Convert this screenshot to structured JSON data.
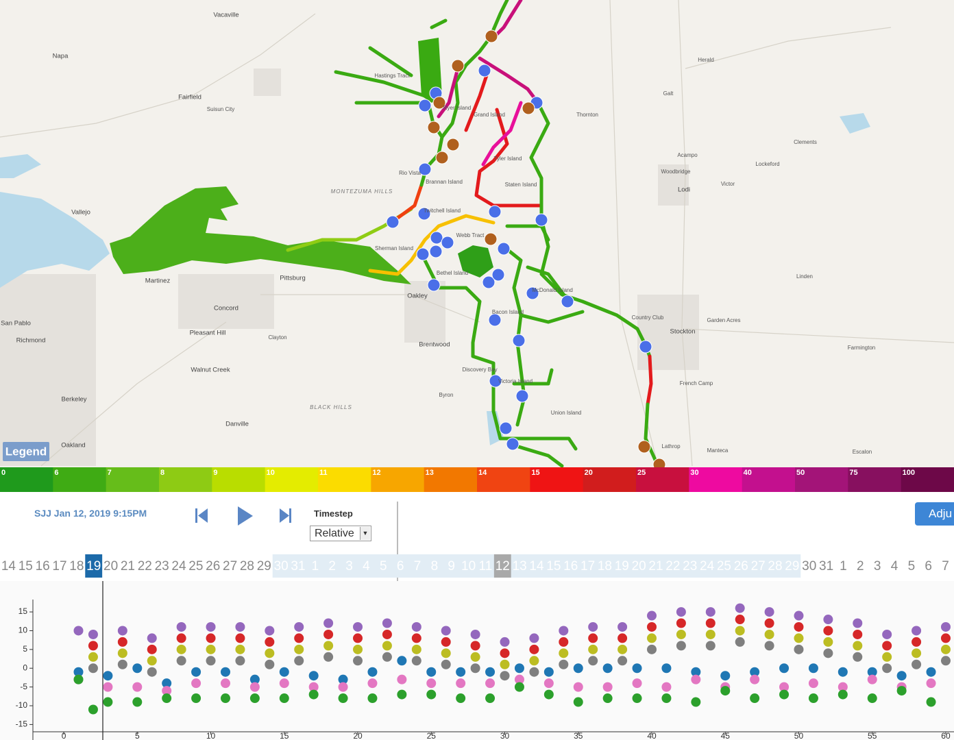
{
  "map": {
    "legend_button": "Legend",
    "places": [
      "Vacaville",
      "Napa",
      "Fairfield",
      "Suisun City",
      "Vallejo",
      "Martinez",
      "Concord",
      "Pittsburg",
      "Oakley",
      "Brentwood",
      "Clayton",
      "Pleasant Hill",
      "Walnut Creek",
      "Richmond",
      "San Pablo",
      "Berkeley",
      "Oakland",
      "Danville",
      "Byron",
      "Discovery Bay",
      "Rio Vista",
      "Thornton",
      "Galt",
      "Herald",
      "Lodi",
      "Acampo",
      "Woodbridge",
      "Victor",
      "Lockeford",
      "Clements",
      "Linden",
      "Stockton",
      "French Camp",
      "Lathrop",
      "Manteca",
      "Escalon",
      "Farmington",
      "Garden Acres",
      "Country Club",
      "MONTEZUMA HILLS",
      "BLACK HILLS",
      "Ryer Island",
      "Grand Island",
      "Tyler Island",
      "Staten Island",
      "Webb Tract",
      "Bethel Island",
      "Bacon Island",
      "Victoria Island",
      "Union Island",
      "McDonald Island",
      "Twitchell Island",
      "Sherman Island",
      "Brannan Island",
      "Hastings Tract"
    ],
    "scale": {
      "labels": [
        0,
        6,
        7,
        8,
        9,
        10,
        11,
        12,
        13,
        14,
        15,
        20,
        25,
        30,
        40,
        50,
        75,
        100
      ],
      "colors": [
        "#1f9a1c",
        "#3fab14",
        "#66bd1a",
        "#8ecb14",
        "#b9dd00",
        "#e4ec00",
        "#fbdc00",
        "#f7a600",
        "#f27800",
        "#f04412",
        "#ef1414",
        "#d11d1d",
        "#c8103e",
        "#ee0aa0",
        "#c3108e",
        "#a31478",
        "#87105f",
        "#6d0848"
      ]
    }
  },
  "controls": {
    "station_time": "SJJ Jan 12, 2019 9:15PM",
    "timestep_label": "Timestep",
    "timestep_value": "Relative",
    "adjust_button": "Adju"
  },
  "timeline": {
    "days": [
      14,
      15,
      16,
      17,
      18,
      19,
      20,
      21,
      22,
      23,
      24,
      25,
      26,
      27,
      28,
      29,
      30,
      31,
      1,
      2,
      3,
      4,
      5,
      6,
      7,
      8,
      9,
      10,
      11,
      12,
      13,
      14,
      15,
      16,
      17,
      18,
      19,
      20,
      21,
      22,
      23,
      24,
      25,
      26,
      27,
      28,
      29,
      30,
      31,
      1,
      2,
      3,
      4,
      5,
      6,
      7
    ],
    "selected_index": 5,
    "marked_index": 29,
    "range": [
      16,
      46
    ]
  },
  "chart_data": {
    "type": "scatter",
    "x": [
      1,
      2,
      3,
      4,
      5,
      6,
      7,
      8,
      9,
      10,
      11,
      12,
      13,
      14,
      15,
      16,
      17,
      18,
      19,
      20,
      21,
      22,
      23,
      24,
      25,
      26,
      27,
      28,
      29,
      30,
      31,
      32,
      33,
      34,
      35,
      36,
      37,
      38,
      39,
      40,
      41,
      42,
      43,
      44,
      45,
      46,
      47,
      48,
      49,
      50,
      51,
      52,
      53,
      54,
      55,
      56,
      57,
      58,
      59,
      60
    ],
    "series": [
      {
        "color": "#9467bd",
        "values": [
          10,
          9,
          null,
          10,
          null,
          8,
          null,
          11,
          null,
          11,
          null,
          11,
          null,
          10,
          null,
          11,
          null,
          12,
          null,
          11,
          null,
          12,
          null,
          11,
          null,
          10,
          null,
          9,
          null,
          7,
          null,
          8,
          null,
          10,
          null,
          11,
          null,
          11,
          null,
          14,
          null,
          15,
          null,
          15,
          null,
          16,
          null,
          15,
          null,
          14,
          null,
          13,
          null,
          12,
          null,
          9,
          null,
          10,
          null,
          11
        ]
      },
      {
        "color": "#d62728",
        "values": [
          null,
          6,
          null,
          7,
          null,
          5,
          null,
          8,
          null,
          8,
          null,
          8,
          null,
          7,
          null,
          8,
          null,
          9,
          null,
          8,
          null,
          9,
          null,
          8,
          null,
          7,
          null,
          6,
          null,
          4,
          null,
          5,
          null,
          7,
          null,
          8,
          null,
          8,
          null,
          11,
          null,
          12,
          null,
          12,
          null,
          13,
          null,
          12,
          null,
          11,
          null,
          10,
          null,
          9,
          null,
          6,
          null,
          7,
          null,
          8
        ]
      },
      {
        "color": "#bcbd22",
        "values": [
          null,
          3,
          null,
          4,
          null,
          2,
          null,
          5,
          null,
          5,
          null,
          5,
          null,
          4,
          null,
          5,
          null,
          6,
          null,
          5,
          null,
          6,
          null,
          5,
          null,
          4,
          null,
          3,
          null,
          1,
          null,
          2,
          null,
          4,
          null,
          5,
          null,
          5,
          null,
          8,
          null,
          9,
          null,
          9,
          null,
          10,
          null,
          9,
          null,
          8,
          null,
          7,
          null,
          6,
          null,
          3,
          null,
          4,
          null,
          5
        ]
      },
      {
        "color": "#7f7f7f",
        "values": [
          null,
          0,
          null,
          1,
          null,
          -1,
          null,
          2,
          null,
          2,
          null,
          2,
          null,
          1,
          null,
          2,
          null,
          3,
          null,
          2,
          null,
          3,
          null,
          2,
          null,
          1,
          null,
          0,
          null,
          -2,
          null,
          -1,
          null,
          1,
          null,
          2,
          null,
          2,
          null,
          5,
          null,
          6,
          null,
          6,
          null,
          7,
          null,
          6,
          null,
          5,
          null,
          4,
          null,
          3,
          null,
          0,
          null,
          1,
          null,
          2
        ]
      },
      {
        "color": "#1f77b4",
        "values": [
          -1,
          null,
          -2,
          null,
          0,
          null,
          -4,
          null,
          -1,
          null,
          -1,
          null,
          -3,
          null,
          -1,
          null,
          -2,
          null,
          -3,
          null,
          -1,
          null,
          2,
          null,
          -1,
          null,
          -1,
          null,
          -1,
          null,
          0,
          null,
          -1,
          null,
          0,
          null,
          0,
          null,
          0,
          null,
          0,
          null,
          -1,
          null,
          -2,
          null,
          -1,
          null,
          0,
          null,
          0,
          null,
          -1,
          null,
          -1,
          null,
          -2,
          null,
          -1,
          null
        ]
      },
      {
        "color": "#e377c2",
        "values": [
          -3,
          null,
          -5,
          null,
          -5,
          null,
          -6,
          null,
          -4,
          null,
          -4,
          null,
          -5,
          null,
          -4,
          null,
          -5,
          null,
          -5,
          null,
          -4,
          null,
          -3,
          null,
          -4,
          null,
          -4,
          null,
          -4,
          null,
          -3,
          null,
          -4,
          null,
          -5,
          null,
          -5,
          null,
          -4,
          null,
          -5,
          null,
          -3,
          null,
          -5,
          null,
          -3,
          null,
          -5,
          null,
          -4,
          null,
          -5,
          null,
          -3,
          null,
          -5,
          null,
          -4,
          null
        ]
      },
      {
        "color": "#2ca02c",
        "values": [
          -3,
          -11,
          -9,
          null,
          -9,
          null,
          -8,
          null,
          -8,
          null,
          -8,
          null,
          -8,
          null,
          -8,
          null,
          -7,
          null,
          -8,
          null,
          -8,
          null,
          -7,
          null,
          -7,
          null,
          -8,
          null,
          -8,
          null,
          -5,
          null,
          -7,
          null,
          -9,
          null,
          -8,
          null,
          -8,
          null,
          -8,
          null,
          -9,
          null,
          -6,
          null,
          -8,
          null,
          -7,
          null,
          -8,
          null,
          -7,
          null,
          -8,
          null,
          -6,
          null,
          -9,
          null
        ]
      }
    ],
    "xlim": [
      -2.1,
      60.5
    ],
    "ylim": [
      -17.3,
      18.3
    ],
    "xticks": [
      0,
      5,
      10,
      15,
      20,
      25,
      30,
      35,
      40,
      45,
      50,
      55,
      60
    ],
    "yticks": [
      -15,
      -10,
      -5,
      0,
      5,
      10,
      15
    ]
  }
}
